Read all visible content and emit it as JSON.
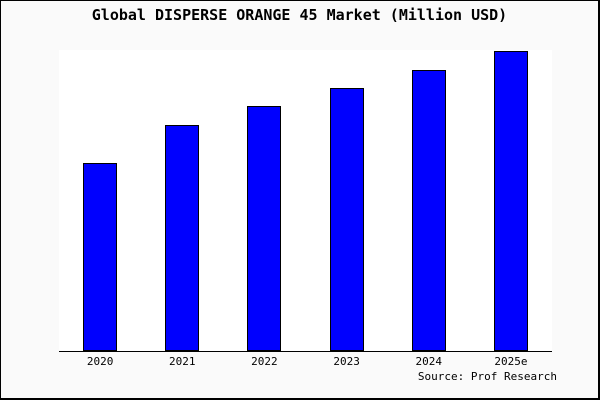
{
  "window": {
    "background": "#FAFAFA",
    "frame_border_color": "#000000"
  },
  "title": "Global DISPERSE ORANGE 45 Market (Million USD)",
  "source_text": "Source: Prof Research",
  "chart_data": {
    "type": "bar",
    "title": "Global DISPERSE ORANGE 45 Market (Million USD)",
    "categories": [
      "2020",
      "2021",
      "2022",
      "2023",
      "2024",
      "2025e"
    ],
    "values": [
      62.8,
      75.2,
      81.6,
      87.6,
      93.8,
      100
    ],
    "values_note": "No y-axis scale or data labels are shown in the image; values are bar heights normalized so the tallest bar (2025e) = 100.",
    "xlabel": "",
    "ylabel": "",
    "ylim": [
      0,
      100
    ],
    "grid": false,
    "legend": "none",
    "axis_lines": "bottom only, no ticks",
    "colors": {
      "plot_background": "#FFFFFF",
      "bar_fill": "#0000FE",
      "bar_border": "#000000",
      "axis": "#000000",
      "text": "#000000"
    }
  }
}
